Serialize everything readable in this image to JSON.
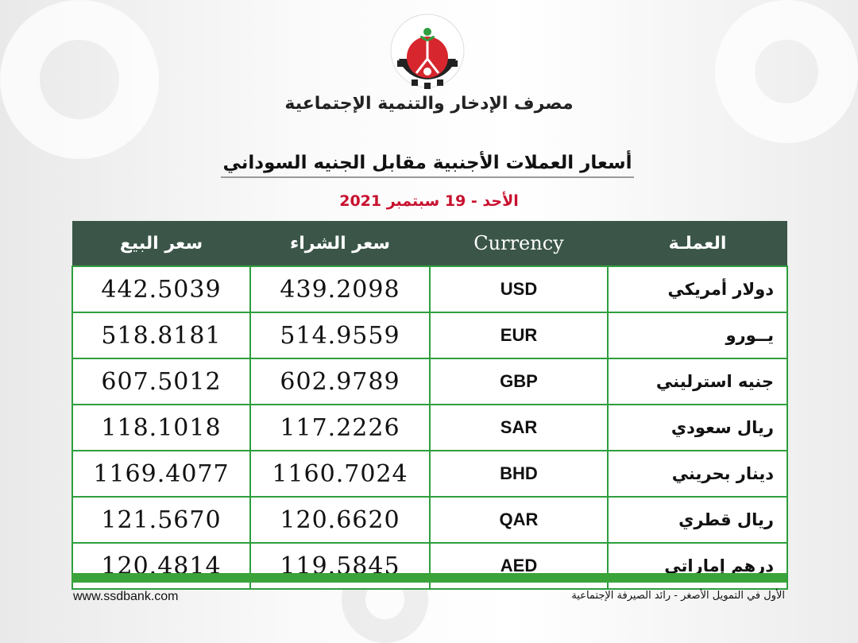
{
  "colors": {
    "header_bg": "#3b5649",
    "border": "#2e9e3e",
    "accent_bar": "#3aa33a",
    "date": "#c8102e"
  },
  "logo": {
    "text": "مصرف الإدخار والتنمية الإجتماعية",
    "icon": "bank-logo-gear-fruit"
  },
  "bank_name": "مصرف الإدخار والتنمية الإجتماعية",
  "title": "أسعار العملات الأجنبية مقابل الجنيه السوداني",
  "date": "الأحد - 19 سبتمبر  2021",
  "table": {
    "headers": {
      "name": "العملـة",
      "currency": "Currency",
      "buy": "سعر الشراء",
      "sell": "سعر البيع"
    },
    "rows": [
      {
        "name": "دولار أمريكي",
        "code": "USD",
        "buy": "439.2098",
        "sell": "442.5039"
      },
      {
        "name": "يــورو",
        "code": "EUR",
        "buy": "514.9559",
        "sell": "518.8181"
      },
      {
        "name": "جنيه استرليني",
        "code": "GBP",
        "buy": "602.9789",
        "sell": "607.5012"
      },
      {
        "name": "ريال سعودي",
        "code": "SAR",
        "buy": "117.2226",
        "sell": "118.1018"
      },
      {
        "name": "دينار بحريني",
        "code": "BHD",
        "buy": "1160.7024",
        "sell": "1169.4077"
      },
      {
        "name": "ريال قطري",
        "code": "QAR",
        "buy": "120.6620",
        "sell": "121.5670"
      },
      {
        "name": "درهم إماراتي",
        "code": "AED",
        "buy": "119.5845",
        "sell": "120.4814"
      }
    ]
  },
  "footer": {
    "url": "www.ssdbank.com",
    "slogan": "الأول في التمويل الأصغر  -  رائد الصيرفة الإجتماعية"
  }
}
